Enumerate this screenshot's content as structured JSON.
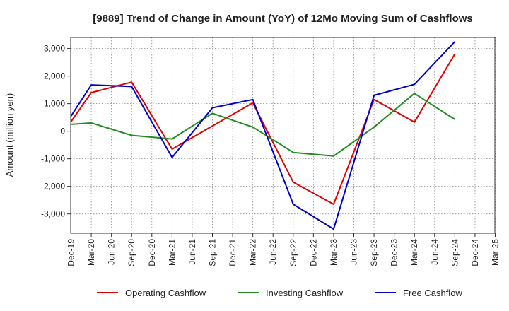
{
  "chart_data": {
    "type": "line",
    "title": "[9889]  Trend of Change in Amount (YoY) of 12Mo Moving Sum of Cashflows",
    "xlabel": "",
    "ylabel": "Amount (million yen)",
    "ylim": [
      -3700,
      3400
    ],
    "yticks": [
      3000,
      2000,
      1000,
      0,
      -1000,
      -2000,
      -3000
    ],
    "ytick_labels": [
      "3,000",
      "2,000",
      "1,000",
      "0",
      "-1,000",
      "-2,000",
      "-3,000"
    ],
    "categories": [
      "Dec-19",
      "Mar-20",
      "Jun-20",
      "Sep-20",
      "Dec-20",
      "Mar-21",
      "Jun-21",
      "Sep-21",
      "Dec-21",
      "Mar-22",
      "Jun-22",
      "Sep-22",
      "Dec-22",
      "Mar-23",
      "Jun-23",
      "Sep-23",
      "Dec-23",
      "Mar-24",
      "Jun-24",
      "Sep-24",
      "Dec-24",
      "Mar-25"
    ],
    "grid": true,
    "legend_position": "bottom",
    "series": [
      {
        "name": "Operating Cashflow",
        "color": "#e00000",
        "values": [
          350,
          1400,
          null,
          1780,
          null,
          -650,
          null,
          null,
          null,
          1030,
          null,
          -1850,
          null,
          -2650,
          null,
          1150,
          null,
          330,
          null,
          2800,
          null,
          null
        ]
      },
      {
        "name": "Investing Cashflow",
        "color": "#228b22",
        "values": [
          250,
          300,
          null,
          -150,
          null,
          -280,
          null,
          650,
          null,
          150,
          null,
          -770,
          null,
          -900,
          null,
          150,
          null,
          1370,
          null,
          430,
          null,
          null
        ]
      },
      {
        "name": "Free Cashflow",
        "color": "#0000cc",
        "values": [
          550,
          1680,
          null,
          1620,
          null,
          -950,
          null,
          850,
          null,
          1150,
          null,
          -2650,
          null,
          -3550,
          null,
          1300,
          null,
          1700,
          null,
          3250,
          null,
          null
        ]
      }
    ]
  }
}
